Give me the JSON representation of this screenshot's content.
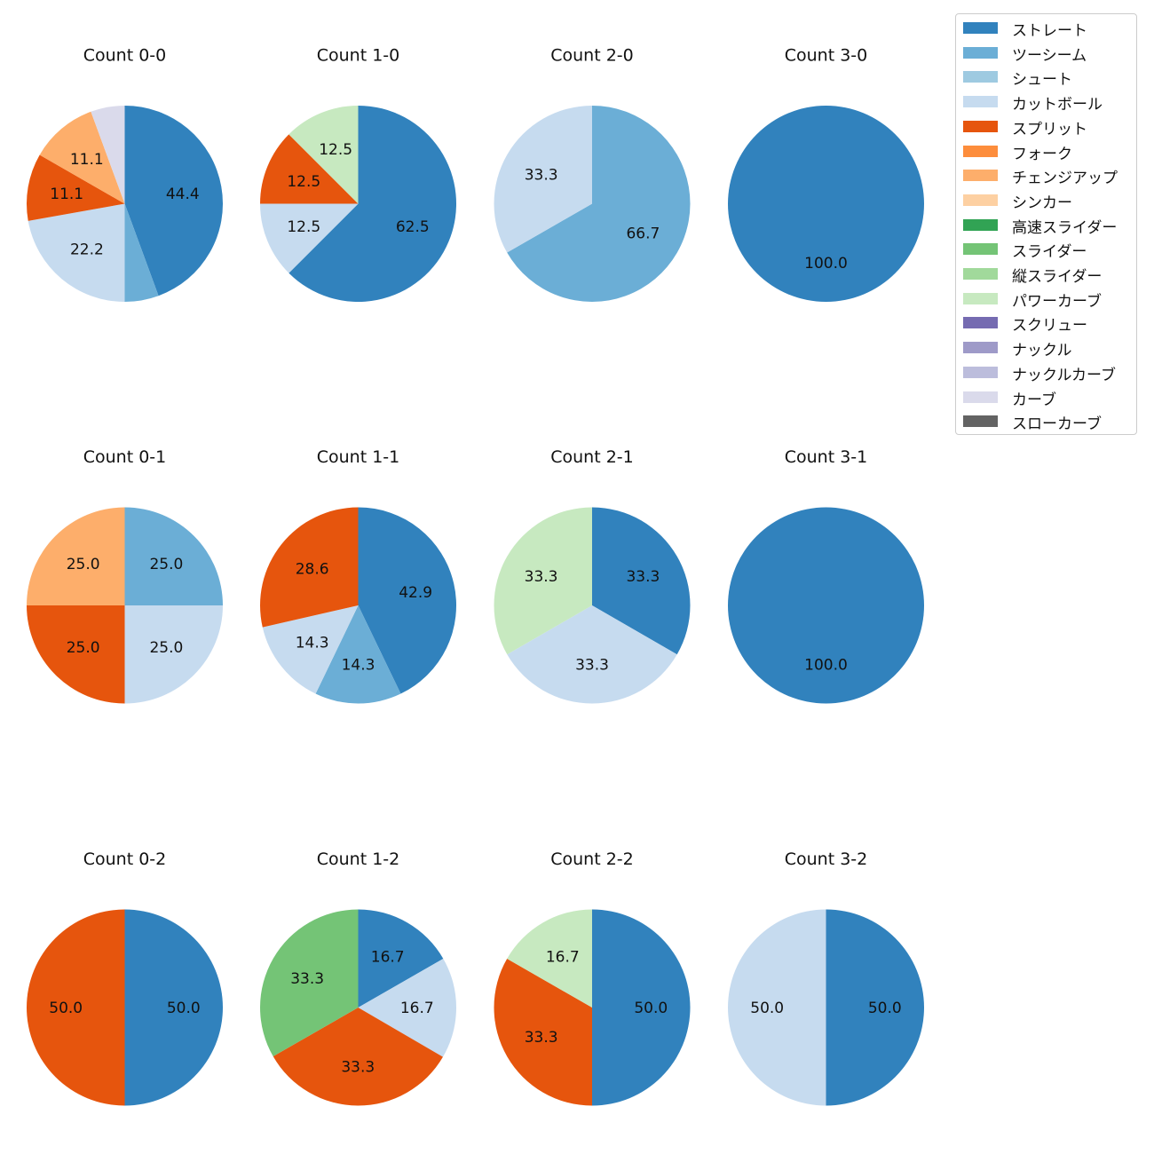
{
  "pitch_types": [
    {
      "name": "ストレート",
      "color": "#3182bd"
    },
    {
      "name": "ツーシーム",
      "color": "#6baed6"
    },
    {
      "name": "シュート",
      "color": "#9ecae1"
    },
    {
      "name": "カットボール",
      "color": "#c6dbef"
    },
    {
      "name": "スプリット",
      "color": "#e6550d"
    },
    {
      "name": "フォーク",
      "color": "#fd8d3c"
    },
    {
      "name": "チェンジアップ",
      "color": "#fdae6b"
    },
    {
      "name": "シンカー",
      "color": "#fdd0a2"
    },
    {
      "name": "高速スライダー",
      "color": "#31a354"
    },
    {
      "name": "スライダー",
      "color": "#74c476"
    },
    {
      "name": "縦スライダー",
      "color": "#a1d99b"
    },
    {
      "name": "パワーカーブ",
      "color": "#c7e9c0"
    },
    {
      "name": "スクリュー",
      "color": "#756bb1"
    },
    {
      "name": "ナックル",
      "color": "#9e9ac8"
    },
    {
      "name": "ナックルカーブ",
      "color": "#bcbddc"
    },
    {
      "name": "カーブ",
      "color": "#dadaeb"
    },
    {
      "name": "スローカーブ",
      "color": "#636363"
    }
  ],
  "chart_data": [
    {
      "type": "pie",
      "title": "Count 0-0",
      "row": 0,
      "col": 0,
      "slices": [
        {
          "label": "ストレート",
          "value": 44.4,
          "text": "44.4"
        },
        {
          "label": "ツーシーム",
          "value": 5.6,
          "text": ""
        },
        {
          "label": "カットボール",
          "value": 22.2,
          "text": "22.2"
        },
        {
          "label": "スプリット",
          "value": 11.1,
          "text": "11.1"
        },
        {
          "label": "チェンジアップ",
          "value": 11.1,
          "text": "11.1"
        },
        {
          "label": "カーブ",
          "value": 5.6,
          "text": ""
        }
      ]
    },
    {
      "type": "pie",
      "title": "Count 1-0",
      "row": 0,
      "col": 1,
      "slices": [
        {
          "label": "ストレート",
          "value": 62.5,
          "text": "62.5"
        },
        {
          "label": "カットボール",
          "value": 12.5,
          "text": "12.5"
        },
        {
          "label": "スプリット",
          "value": 12.5,
          "text": "12.5"
        },
        {
          "label": "パワーカーブ",
          "value": 12.5,
          "text": "12.5"
        }
      ]
    },
    {
      "type": "pie",
      "title": "Count 2-0",
      "row": 0,
      "col": 2,
      "slices": [
        {
          "label": "ツーシーム",
          "value": 66.7,
          "text": "66.7"
        },
        {
          "label": "カットボール",
          "value": 33.3,
          "text": "33.3"
        }
      ]
    },
    {
      "type": "pie",
      "title": "Count 3-0",
      "row": 0,
      "col": 3,
      "slices": [
        {
          "label": "ストレート",
          "value": 100.0,
          "text": "100.0"
        }
      ]
    },
    {
      "type": "pie",
      "title": "Count 0-1",
      "row": 1,
      "col": 0,
      "slices": [
        {
          "label": "ツーシーム",
          "value": 25.0,
          "text": "25.0"
        },
        {
          "label": "カットボール",
          "value": 25.0,
          "text": "25.0"
        },
        {
          "label": "スプリット",
          "value": 25.0,
          "text": "25.0"
        },
        {
          "label": "チェンジアップ",
          "value": 25.0,
          "text": "25.0"
        }
      ]
    },
    {
      "type": "pie",
      "title": "Count 1-1",
      "row": 1,
      "col": 1,
      "slices": [
        {
          "label": "ストレート",
          "value": 42.9,
          "text": "42.9"
        },
        {
          "label": "ツーシーム",
          "value": 14.3,
          "text": "14.3"
        },
        {
          "label": "カットボール",
          "value": 14.3,
          "text": "14.3"
        },
        {
          "label": "スプリット",
          "value": 28.6,
          "text": "28.6"
        }
      ]
    },
    {
      "type": "pie",
      "title": "Count 2-1",
      "row": 1,
      "col": 2,
      "slices": [
        {
          "label": "ストレート",
          "value": 33.3,
          "text": "33.3"
        },
        {
          "label": "カットボール",
          "value": 33.3,
          "text": "33.3"
        },
        {
          "label": "パワーカーブ",
          "value": 33.3,
          "text": "33.3"
        }
      ]
    },
    {
      "type": "pie",
      "title": "Count 3-1",
      "row": 1,
      "col": 3,
      "slices": [
        {
          "label": "ストレート",
          "value": 100.0,
          "text": "100.0"
        }
      ]
    },
    {
      "type": "pie",
      "title": "Count 0-2",
      "row": 2,
      "col": 0,
      "slices": [
        {
          "label": "ストレート",
          "value": 50.0,
          "text": "50.0"
        },
        {
          "label": "スプリット",
          "value": 50.0,
          "text": "50.0"
        }
      ]
    },
    {
      "type": "pie",
      "title": "Count 1-2",
      "row": 2,
      "col": 1,
      "slices": [
        {
          "label": "ストレート",
          "value": 16.7,
          "text": "16.7"
        },
        {
          "label": "カットボール",
          "value": 16.7,
          "text": "16.7"
        },
        {
          "label": "スプリット",
          "value": 33.3,
          "text": "33.3"
        },
        {
          "label": "スライダー",
          "value": 33.3,
          "text": "33.3"
        }
      ]
    },
    {
      "type": "pie",
      "title": "Count 2-2",
      "row": 2,
      "col": 2,
      "slices": [
        {
          "label": "ストレート",
          "value": 50.0,
          "text": "50.0"
        },
        {
          "label": "スプリット",
          "value": 33.3,
          "text": "33.3"
        },
        {
          "label": "パワーカーブ",
          "value": 16.7,
          "text": "16.7"
        }
      ]
    },
    {
      "type": "pie",
      "title": "Count 3-2",
      "row": 2,
      "col": 3,
      "slices": [
        {
          "label": "ストレート",
          "value": 50.0,
          "text": "50.0"
        },
        {
          "label": "カットボール",
          "value": 50.0,
          "text": "50.0"
        }
      ]
    }
  ]
}
